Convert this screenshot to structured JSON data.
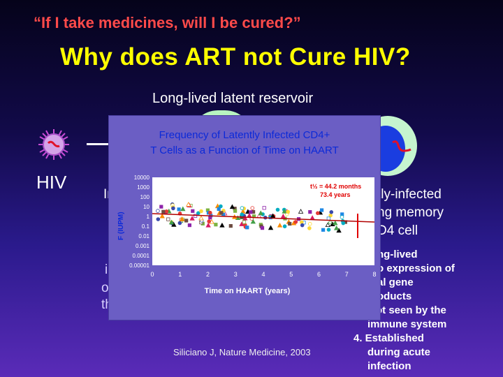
{
  "slide": {
    "question": "“If I take medicines, will I be cured?”",
    "title": "Why does ART not Cure HIV?",
    "subtitle": "Long-lived latent reservoir",
    "hiv_label": "HIV",
    "behind_left": [
      "In",
      "in",
      "o",
      "th"
    ],
    "right_line1": "tly-infected",
    "right_line2": "ng memory",
    "right_line3": "D4 cell",
    "list": [
      "ng-lived",
      "o expression of",
      "al gene",
      "oducts",
      "ot seen by the",
      "immune system",
      "4.  Established",
      "during acute",
      "infection"
    ],
    "citation": "Siliciano J, Nature Medicine, 2003"
  },
  "chart_data": {
    "type": "scatter",
    "title_line1": "Frequency of Latently Infected CD4+",
    "title_line2": "T Cells as a Function of Time on HAART",
    "xlabel": "Time on HAART (years)",
    "ylabel": "F (IUPM)",
    "xlim": [
      0,
      8
    ],
    "ylim_log10": [
      -5,
      4
    ],
    "x_ticks": [
      "0",
      "1",
      "2",
      "3",
      "4",
      "5",
      "6",
      "7",
      "8"
    ],
    "y_ticks": [
      "10000",
      "1000",
      "100",
      "10",
      "1",
      "0.1",
      "0.01",
      "0.001",
      "0.0001",
      "0.00001"
    ],
    "annotation_line1": "t½ = 44.2 months",
    "annotation_line2": "73.4 years",
    "colors": {
      "title": "#0c2ad8",
      "ylabel": "#0c2ad8",
      "annotation": "#e00000",
      "axis_text": "#ffffff",
      "plot_bg": "#ffffff",
      "panel_bg": "#6b5ec4",
      "trend": "#b00000"
    }
  }
}
